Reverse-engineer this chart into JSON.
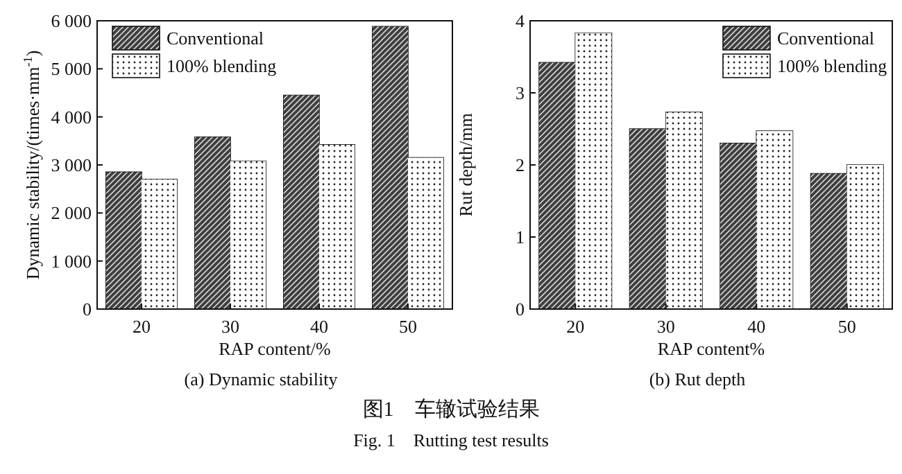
{
  "chart_data": [
    {
      "type": "bar",
      "categories": [
        "20",
        "30",
        "40",
        "50"
      ],
      "xlabel": "RAP content/%",
      "ylabel": "Dynamic stability/(times·mm$^{-1}$)",
      "ylim": [
        0,
        6000
      ],
      "yticks": [
        0,
        {
          "value": 1000,
          "label": "1 000"
        },
        {
          "value": 2000,
          "label": "2 000"
        },
        {
          "value": 3000,
          "label": "3 000"
        },
        {
          "value": 4000,
          "label": "4 000"
        },
        {
          "value": 5000,
          "label": "5 000"
        },
        {
          "value": 6000,
          "label": "6 000"
        }
      ],
      "series": [
        {
          "name": "Conventional",
          "color": "#404040",
          "values": [
            2850,
            3580,
            4450,
            5880
          ]
        },
        {
          "name": "100% blending",
          "color": "#ffffff",
          "values": [
            2700,
            3080,
            3420,
            3150
          ]
        }
      ],
      "legend": "top left",
      "annotations": [
        "(a) Dynamic stability",
        "图1　车辙试验结果",
        "Fig. 1　Rutting test results"
      ]
    },
    {
      "type": "bar",
      "categories": [
        "20",
        "30",
        "40",
        "50"
      ],
      "xlabel": "RAP content%",
      "ylabel": "Rut depth/mm",
      "ylim": [
        0,
        4
      ],
      "yticks": [
        0,
        1,
        2,
        3,
        4
      ],
      "series": [
        {
          "name": "Conventional",
          "color": "#404040",
          "values": [
            3.42,
            2.5,
            2.3,
            1.88
          ]
        },
        {
          "name": "100% blending",
          "color": "#ffffff",
          "values": [
            3.83,
            2.73,
            2.47,
            2.0
          ]
        }
      ],
      "legend": "top right",
      "annotations": [
        "(b) Rut depth"
      ]
    }
  ]
}
